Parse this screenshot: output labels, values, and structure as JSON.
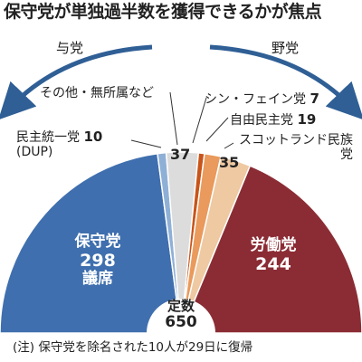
{
  "title": "保守党が単独過半数を獲得できるかが焦点",
  "side_left": "与党",
  "side_right": "野党",
  "note": "(注) 保守党を除名された10人が29日に復帰",
  "chart_data": {
    "type": "pie",
    "shape": "semicircle",
    "total_label": "定数",
    "total": "650",
    "slices": [
      {
        "name": "保守党",
        "value": 298,
        "unit": "議席",
        "color": "#3f6fae"
      },
      {
        "name": "民主統一党",
        "alias": "(DUP)",
        "value": 10,
        "color": "#8fb0d6"
      },
      {
        "name": "その他・無所属など",
        "value": 37,
        "color": "#dcdcdc"
      },
      {
        "name": "シン・フェイン党",
        "value": 7,
        "color": "#c8541a"
      },
      {
        "name": "自由民主党",
        "value": 19,
        "color": "#e99a5c"
      },
      {
        "name": "スコットランド民族党",
        "value": 35,
        "color": "#eec9a2"
      },
      {
        "name": "労働党",
        "value": 244,
        "color": "#8b2c34"
      }
    ]
  }
}
